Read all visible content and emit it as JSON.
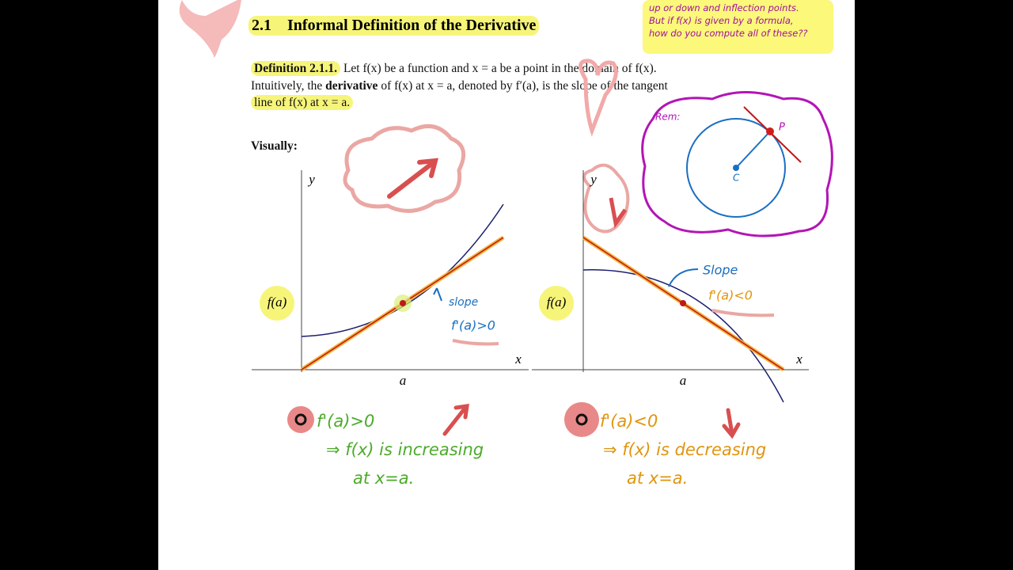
{
  "header": {
    "section": "2.1",
    "title": "Informal Definition of the Derivative"
  },
  "definition": {
    "label": "Definition 2.1.1.",
    "lines": [
      [
        "Let f(x) be a function and x = a be a point in the domain of f(x)."
      ],
      [
        "Intuitively, the ",
        "derivative",
        " of f(x) at x = a, denoted by f′(a), is the slope of the tangent"
      ],
      [
        "line of f(x) at x = a."
      ]
    ]
  },
  "visually": "Visually:",
  "top_note": [
    "up or down and inflection points.",
    "But if f(x) is given by a formula,",
    "how do you compute all of these??"
  ],
  "reminder": {
    "label": "Rem:",
    "point_p": "P",
    "point_c": "C"
  },
  "graphs": [
    {
      "y_label": "y",
      "x_label": "x",
      "a_label": "a",
      "fa_label": "f(a)"
    },
    {
      "y_label": "y",
      "x_label": "x",
      "a_label": "a",
      "fa_label": "f(a)"
    }
  ],
  "left_notes": {
    "slope": "slope",
    "sign": "f'(a)>0",
    "conclusion": [
      "f'(a)>0",
      "⇒ f(x) is increasing",
      "at x=a."
    ]
  },
  "right_notes": {
    "slope": "Slope",
    "sign": "f'(a)<0",
    "conclusion": [
      "f'(a)<0",
      "⇒ f(x) is decreasing",
      "at x=a."
    ]
  }
}
